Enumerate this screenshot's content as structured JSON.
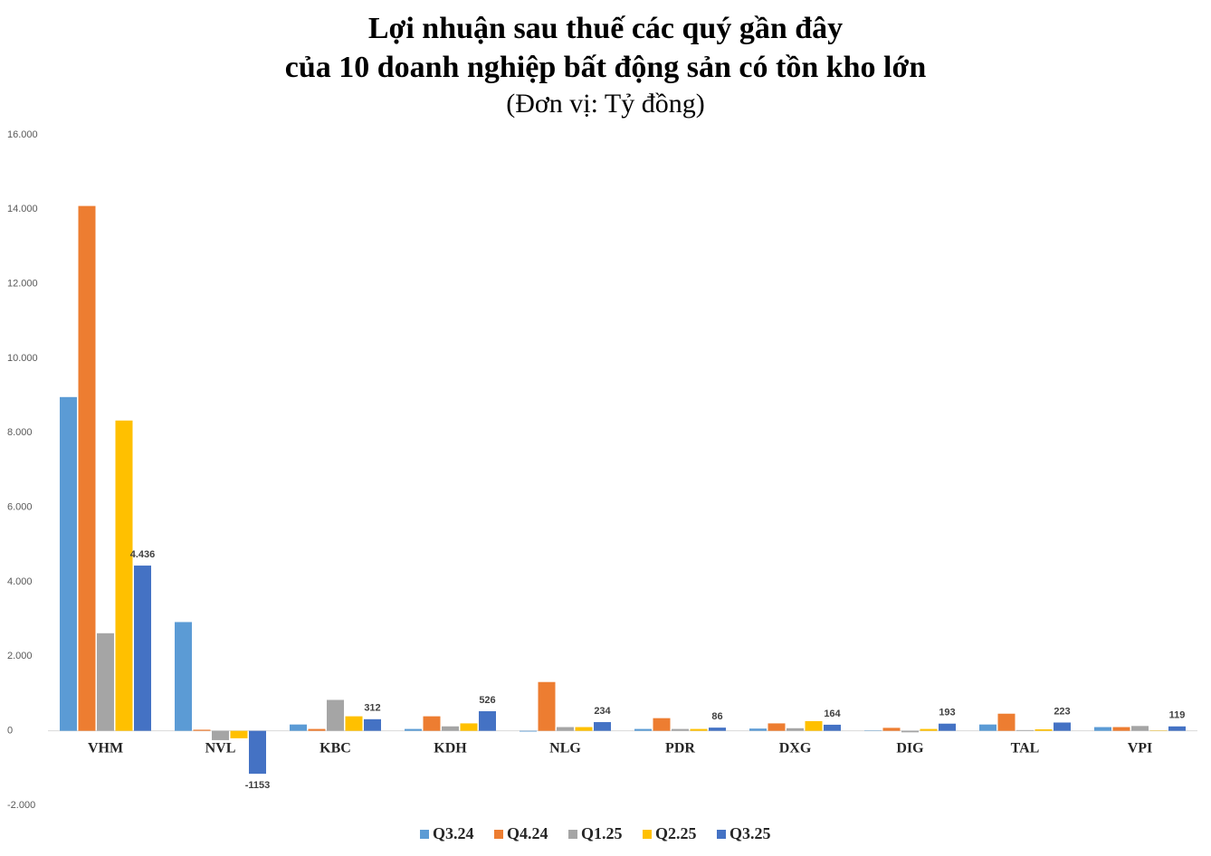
{
  "chart_data": {
    "type": "bar",
    "title": [
      "Lợi nhuận sau thuế các quý gần đây",
      "của 10 doanh nghiệp bất động sản có tồn kho lớn"
    ],
    "subtitle": "(Đơn vị: Tỷ đồng)",
    "categories": [
      "VHM",
      "NVL",
      "KBC",
      "KDH",
      "NLG",
      "PDR",
      "DXG",
      "DIG",
      "TAL",
      "VPI"
    ],
    "series": [
      {
        "name": "Q3.24",
        "color": "#5b9bd5",
        "values": [
          8960,
          2920,
          170,
          50,
          -20,
          50,
          60,
          10,
          170,
          100
        ]
      },
      {
        "name": "Q4.24",
        "color": "#ed7d31",
        "values": [
          14090,
          30,
          50,
          390,
          1310,
          340,
          200,
          80,
          460,
          100
        ]
      },
      {
        "name": "Q1.25",
        "color": "#a5a5a5",
        "values": [
          2620,
          -250,
          830,
          120,
          100,
          50,
          70,
          -40,
          20,
          130
        ]
      },
      {
        "name": "Q2.25",
        "color": "#ffc000",
        "values": [
          8330,
          -200,
          390,
          200,
          100,
          50,
          260,
          50,
          40,
          10
        ]
      },
      {
        "name": "Q3.25",
        "color": "#4472c4",
        "values": [
          4436,
          -1153,
          312,
          526,
          234,
          86,
          164,
          193,
          223,
          119
        ],
        "value_labels": [
          "4.436",
          "-1153",
          "312",
          "526",
          "234",
          "86",
          "164",
          "193",
          "223",
          "119"
        ]
      }
    ],
    "ylim": [
      -2000,
      16000
    ],
    "yticks": [
      {
        "value": -2000,
        "label": "-2.000"
      },
      0,
      {
        "value": 2000,
        "label": "2.000"
      },
      {
        "value": 4000,
        "label": "4.000"
      },
      {
        "value": 6000,
        "label": "6.000"
      },
      {
        "value": 8000,
        "label": "8.000"
      },
      {
        "value": 10000,
        "label": "10.000"
      },
      {
        "value": 12000,
        "label": "12.000"
      },
      {
        "value": 14000,
        "label": "14.000"
      },
      {
        "value": 16000,
        "label": "16.000"
      }
    ],
    "grid": false,
    "legend": "bottom"
  }
}
